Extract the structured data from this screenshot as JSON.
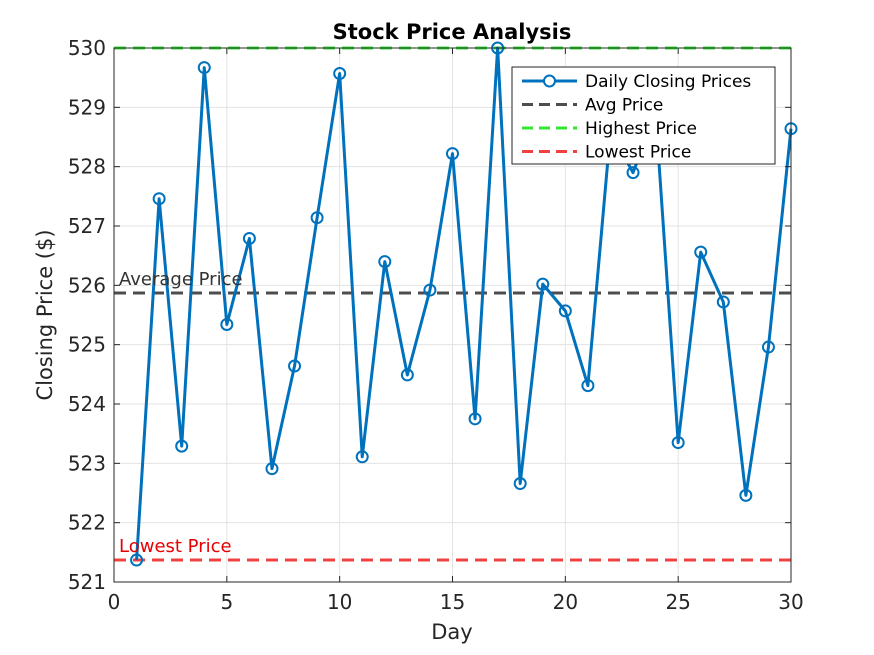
{
  "chart_data": {
    "type": "line",
    "title": "Stock Price Analysis",
    "xlabel": "Day",
    "ylabel": "Closing Price ($)",
    "xlim": [
      0,
      30
    ],
    "ylim": [
      521,
      530
    ],
    "xticks": [
      0,
      5,
      10,
      15,
      20,
      25,
      30
    ],
    "yticks": [
      521,
      522,
      523,
      524,
      525,
      526,
      527,
      528,
      529,
      530
    ],
    "grid": true,
    "legend_position": "top-right",
    "x": [
      1,
      2,
      3,
      4,
      5,
      6,
      7,
      8,
      9,
      10,
      11,
      12,
      13,
      14,
      15,
      16,
      17,
      18,
      19,
      20,
      21,
      22,
      23,
      24,
      25,
      26,
      27,
      28,
      29,
      30
    ],
    "series": [
      {
        "name": "Daily Closing Prices",
        "color": "#0072BD",
        "marker": "circle",
        "values": [
          521.37,
          527.46,
          523.29,
          529.67,
          525.34,
          526.79,
          522.91,
          524.64,
          527.14,
          529.57,
          523.11,
          526.4,
          524.49,
          525.92,
          528.22,
          523.75,
          530.0,
          522.66,
          526.02,
          525.57,
          524.31,
          528.6,
          527.9,
          528.9,
          523.35,
          526.56,
          525.72,
          522.46,
          524.96,
          528.64
        ]
      }
    ],
    "reference_lines": [
      {
        "name": "Avg Price",
        "value": 525.87,
        "color": "#4D4D4D",
        "style": "dashed",
        "annotation": "Average Price",
        "annotation_color": "#333333"
      },
      {
        "name": "Highest Price",
        "value": 530.0,
        "color": "#33E633",
        "style": "dashed",
        "annotation": "",
        "annotation_color": "#33E633"
      },
      {
        "name": "Lowest Price",
        "value": 521.37,
        "color": "#F04040",
        "style": "dashed",
        "annotation": "Lowest Price",
        "annotation_color": "#E60000"
      }
    ]
  }
}
